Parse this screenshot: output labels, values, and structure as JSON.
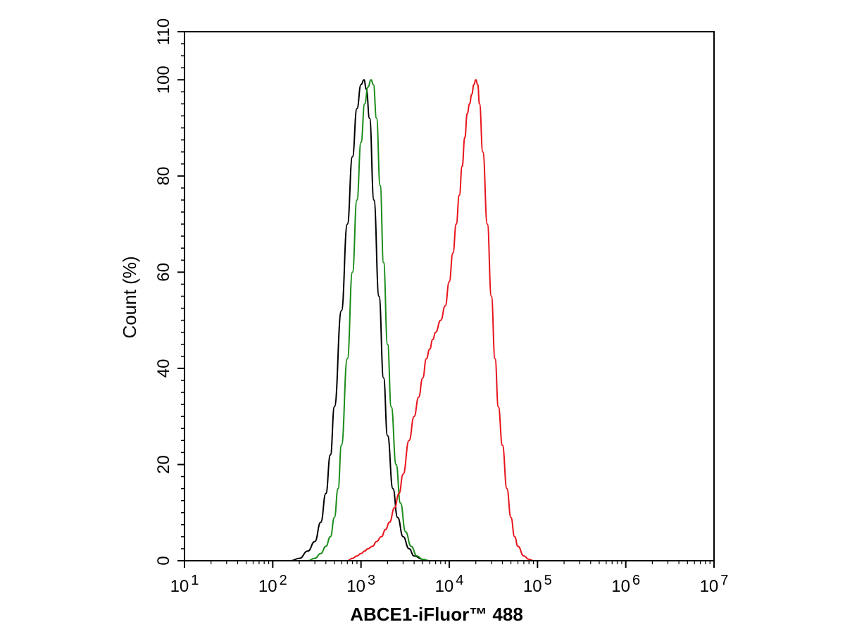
{
  "chart_data": {
    "type": "line",
    "title": "",
    "xlabel": "ABCE1-iFluor™ 488",
    "ylabel": "Count  (%)",
    "x_scale": "log",
    "xlim": [
      10,
      10000000
    ],
    "ylim": [
      0,
      110
    ],
    "x_ticks": [
      {
        "base": "10",
        "exp": "1"
      },
      {
        "base": "10",
        "exp": "2"
      },
      {
        "base": "10",
        "exp": "3"
      },
      {
        "base": "10",
        "exp": "4"
      },
      {
        "base": "10",
        "exp": "5"
      },
      {
        "base": "10",
        "exp": "6"
      },
      {
        "base": "10",
        "exp": "7"
      }
    ],
    "y_ticks": [
      "0",
      "20",
      "40",
      "60",
      "80",
      "100",
      "110"
    ],
    "grid": false,
    "legend": "none",
    "series": [
      {
        "color": "#000000",
        "points": [
          [
            160,
            0
          ],
          [
            200,
            0.5
          ],
          [
            250,
            2
          ],
          [
            300,
            4
          ],
          [
            350,
            8
          ],
          [
            400,
            14
          ],
          [
            450,
            22
          ],
          [
            500,
            32
          ],
          [
            600,
            52
          ],
          [
            700,
            70
          ],
          [
            800,
            84
          ],
          [
            900,
            94
          ],
          [
            1000,
            99
          ],
          [
            1080,
            100
          ],
          [
            1150,
            98
          ],
          [
            1250,
            92
          ],
          [
            1400,
            75
          ],
          [
            1600,
            55
          ],
          [
            1800,
            38
          ],
          [
            2000,
            26
          ],
          [
            2300,
            15
          ],
          [
            2600,
            9
          ],
          [
            3000,
            5
          ],
          [
            3500,
            2.5
          ],
          [
            4000,
            1
          ],
          [
            5000,
            0.3
          ],
          [
            6000,
            0
          ]
        ]
      },
      {
        "color": "#1a8c1a",
        "points": [
          [
            250,
            0
          ],
          [
            300,
            0.5
          ],
          [
            350,
            1.5
          ],
          [
            400,
            3
          ],
          [
            450,
            5
          ],
          [
            500,
            9
          ],
          [
            550,
            15
          ],
          [
            600,
            24
          ],
          [
            700,
            42
          ],
          [
            800,
            60
          ],
          [
            900,
            75
          ],
          [
            1000,
            87
          ],
          [
            1100,
            95
          ],
          [
            1200,
            98.5
          ],
          [
            1300,
            100
          ],
          [
            1380,
            99
          ],
          [
            1500,
            92
          ],
          [
            1650,
            78
          ],
          [
            1800,
            62
          ],
          [
            2000,
            45
          ],
          [
            2200,
            32
          ],
          [
            2500,
            20
          ],
          [
            2800,
            12
          ],
          [
            3200,
            6
          ],
          [
            3700,
            3
          ],
          [
            4300,
            1
          ],
          [
            5000,
            0.3
          ],
          [
            6000,
            0
          ]
        ]
      },
      {
        "color": "#e8141c",
        "points": [
          [
            700,
            0
          ],
          [
            800,
            0.5
          ],
          [
            900,
            1
          ],
          [
            1000,
            1.5
          ],
          [
            1100,
            2
          ],
          [
            1200,
            2.5
          ],
          [
            1350,
            3
          ],
          [
            1500,
            4
          ],
          [
            1700,
            5
          ],
          [
            1900,
            6.5
          ],
          [
            2100,
            8
          ],
          [
            2400,
            11
          ],
          [
            2700,
            14
          ],
          [
            3000,
            18
          ],
          [
            3500,
            25
          ],
          [
            4000,
            30
          ],
          [
            4500,
            34
          ],
          [
            5000,
            38
          ],
          [
            5500,
            42
          ],
          [
            6000,
            44
          ],
          [
            6500,
            46
          ],
          [
            7000,
            47.5
          ],
          [
            8000,
            50
          ],
          [
            9000,
            53
          ],
          [
            10000,
            58
          ],
          [
            11000,
            64
          ],
          [
            12000,
            70
          ],
          [
            13000,
            76
          ],
          [
            14000,
            82
          ],
          [
            15000,
            88
          ],
          [
            16000,
            93
          ],
          [
            17000,
            95
          ],
          [
            18000,
            97
          ],
          [
            19000,
            99
          ],
          [
            20000,
            100
          ],
          [
            21000,
            99
          ],
          [
            22000,
            95
          ],
          [
            24000,
            85
          ],
          [
            27000,
            70
          ],
          [
            30000,
            55
          ],
          [
            33000,
            42
          ],
          [
            36000,
            32
          ],
          [
            40000,
            24
          ],
          [
            45000,
            15
          ],
          [
            50000,
            9
          ],
          [
            55000,
            5
          ],
          [
            60000,
            3
          ],
          [
            70000,
            1
          ],
          [
            80000,
            0.3
          ],
          [
            90000,
            0
          ]
        ]
      }
    ]
  }
}
